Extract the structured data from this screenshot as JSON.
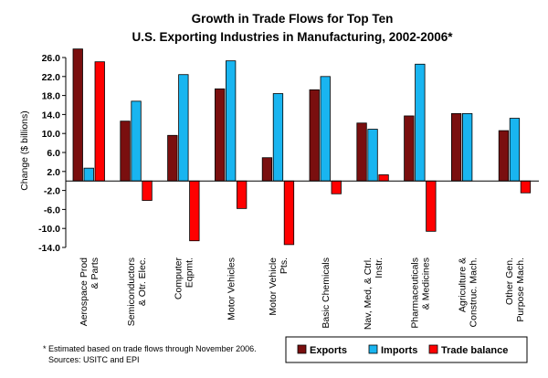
{
  "chart_data": {
    "type": "bar",
    "title": "Growth in Trade Flows for Top Ten",
    "subtitle": "U.S. Exporting Industries in Manufacturing, 2002-2006*",
    "ylabel": "Change ($ billions)",
    "ylim": [
      -14.0,
      26.0
    ],
    "yticks": [
      "26.0",
      "22.0",
      "18.0",
      "14.0",
      "10.0",
      "6.0",
      "2.0",
      "-2.0",
      "-6.0",
      "-10.0",
      "-14.0"
    ],
    "ytick_values": [
      26,
      22,
      18,
      14,
      10,
      6,
      2,
      -2,
      -6,
      -10,
      -14
    ],
    "categories": [
      [
        "Aerospace Prod",
        "& Parts"
      ],
      [
        "Semiconductors",
        "& Otr. Elec."
      ],
      [
        "Computer",
        "Eqpmt."
      ],
      [
        "Motor Vehicles"
      ],
      [
        "Motor Vehicle",
        "Pts."
      ],
      [
        "Basic Chemicals"
      ],
      [
        "Nav, Med, & Ctrl.",
        "Instr."
      ],
      [
        "Pharmaceuticals",
        "& Medicines"
      ],
      [
        "Agriculture &",
        "Construc. Mach."
      ],
      [
        "Other Gen.",
        "Purpose Mach."
      ]
    ],
    "series": [
      {
        "name": "Exports",
        "color": "#7a0f0f",
        "values": [
          27.8,
          12.6,
          9.6,
          19.4,
          4.9,
          19.2,
          12.2,
          13.7,
          14.2,
          10.6
        ]
      },
      {
        "name": "Imports",
        "color": "#19b5f0",
        "values": [
          2.7,
          16.8,
          22.4,
          25.3,
          18.4,
          22.0,
          10.9,
          24.6,
          14.2,
          13.2
        ]
      },
      {
        "name": "Trade balance",
        "color": "#ff0000",
        "values": [
          25.1,
          -4.1,
          -12.6,
          -5.8,
          -13.4,
          -2.7,
          1.3,
          -10.6,
          0,
          -2.5
        ]
      }
    ],
    "grid": false,
    "legend_position": "bottom-right"
  },
  "footnote": {
    "line1": "* Estimated based on trade flows through November 2006.",
    "line2": "Sources: USITC and EPI"
  }
}
